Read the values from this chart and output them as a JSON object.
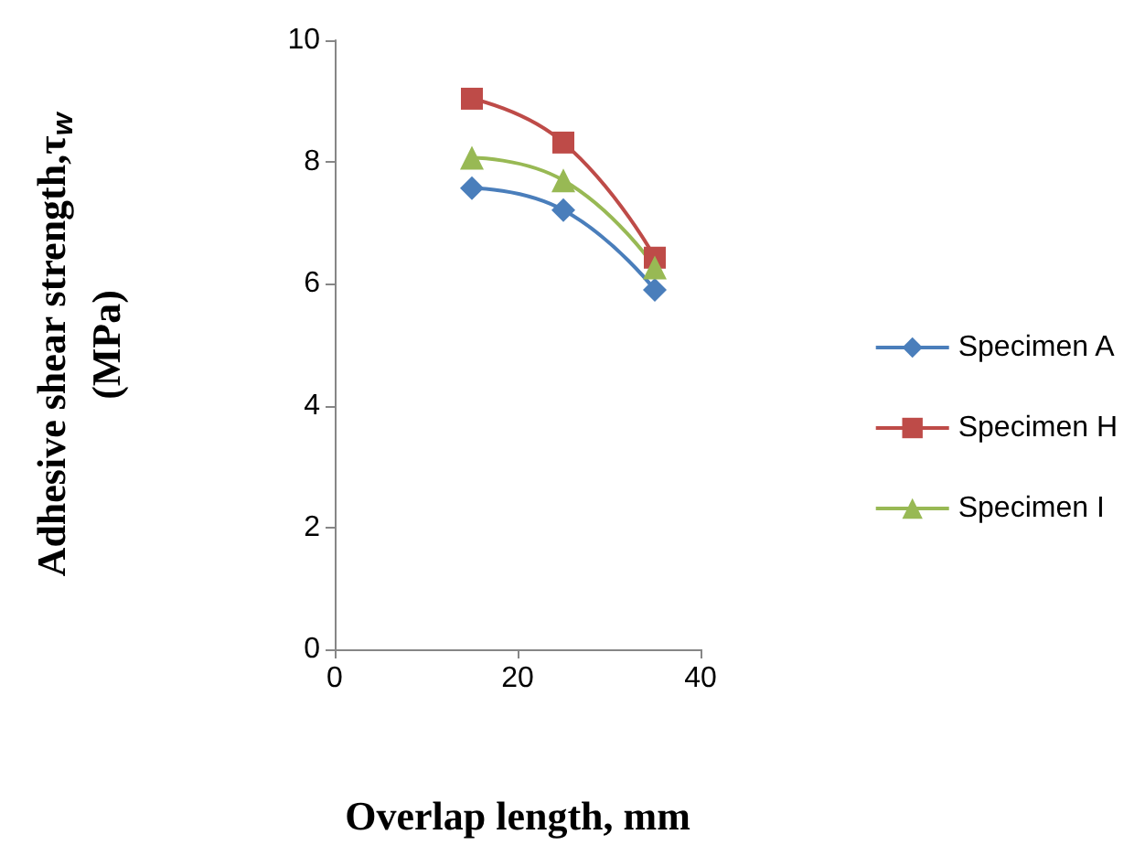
{
  "chart_data": {
    "type": "line",
    "xlabel": "Overlap length, mm",
    "ylabel": "Adhesive shear strength,τ$_{w}$\n(MPa)",
    "x": [
      15,
      25,
      35
    ],
    "series": [
      {
        "name": "Specimen A",
        "color": "#4a7ebb",
        "marker": "diamond",
        "values": [
          7.57,
          7.21,
          5.9
        ]
      },
      {
        "name": "Specimen H",
        "color": "#be4b48",
        "marker": "square",
        "values": [
          9.04,
          8.32,
          6.43
        ]
      },
      {
        "name": "Specimen I",
        "color": "#98b954",
        "marker": "triangle",
        "values": [
          8.07,
          7.7,
          6.27
        ]
      }
    ],
    "xlim": [
      0,
      40
    ],
    "xticks": [
      0,
      20,
      40
    ],
    "ylim": [
      0,
      10
    ],
    "yticks": [
      0,
      2,
      4,
      6,
      8,
      10
    ],
    "grid": false,
    "legend": "right"
  }
}
